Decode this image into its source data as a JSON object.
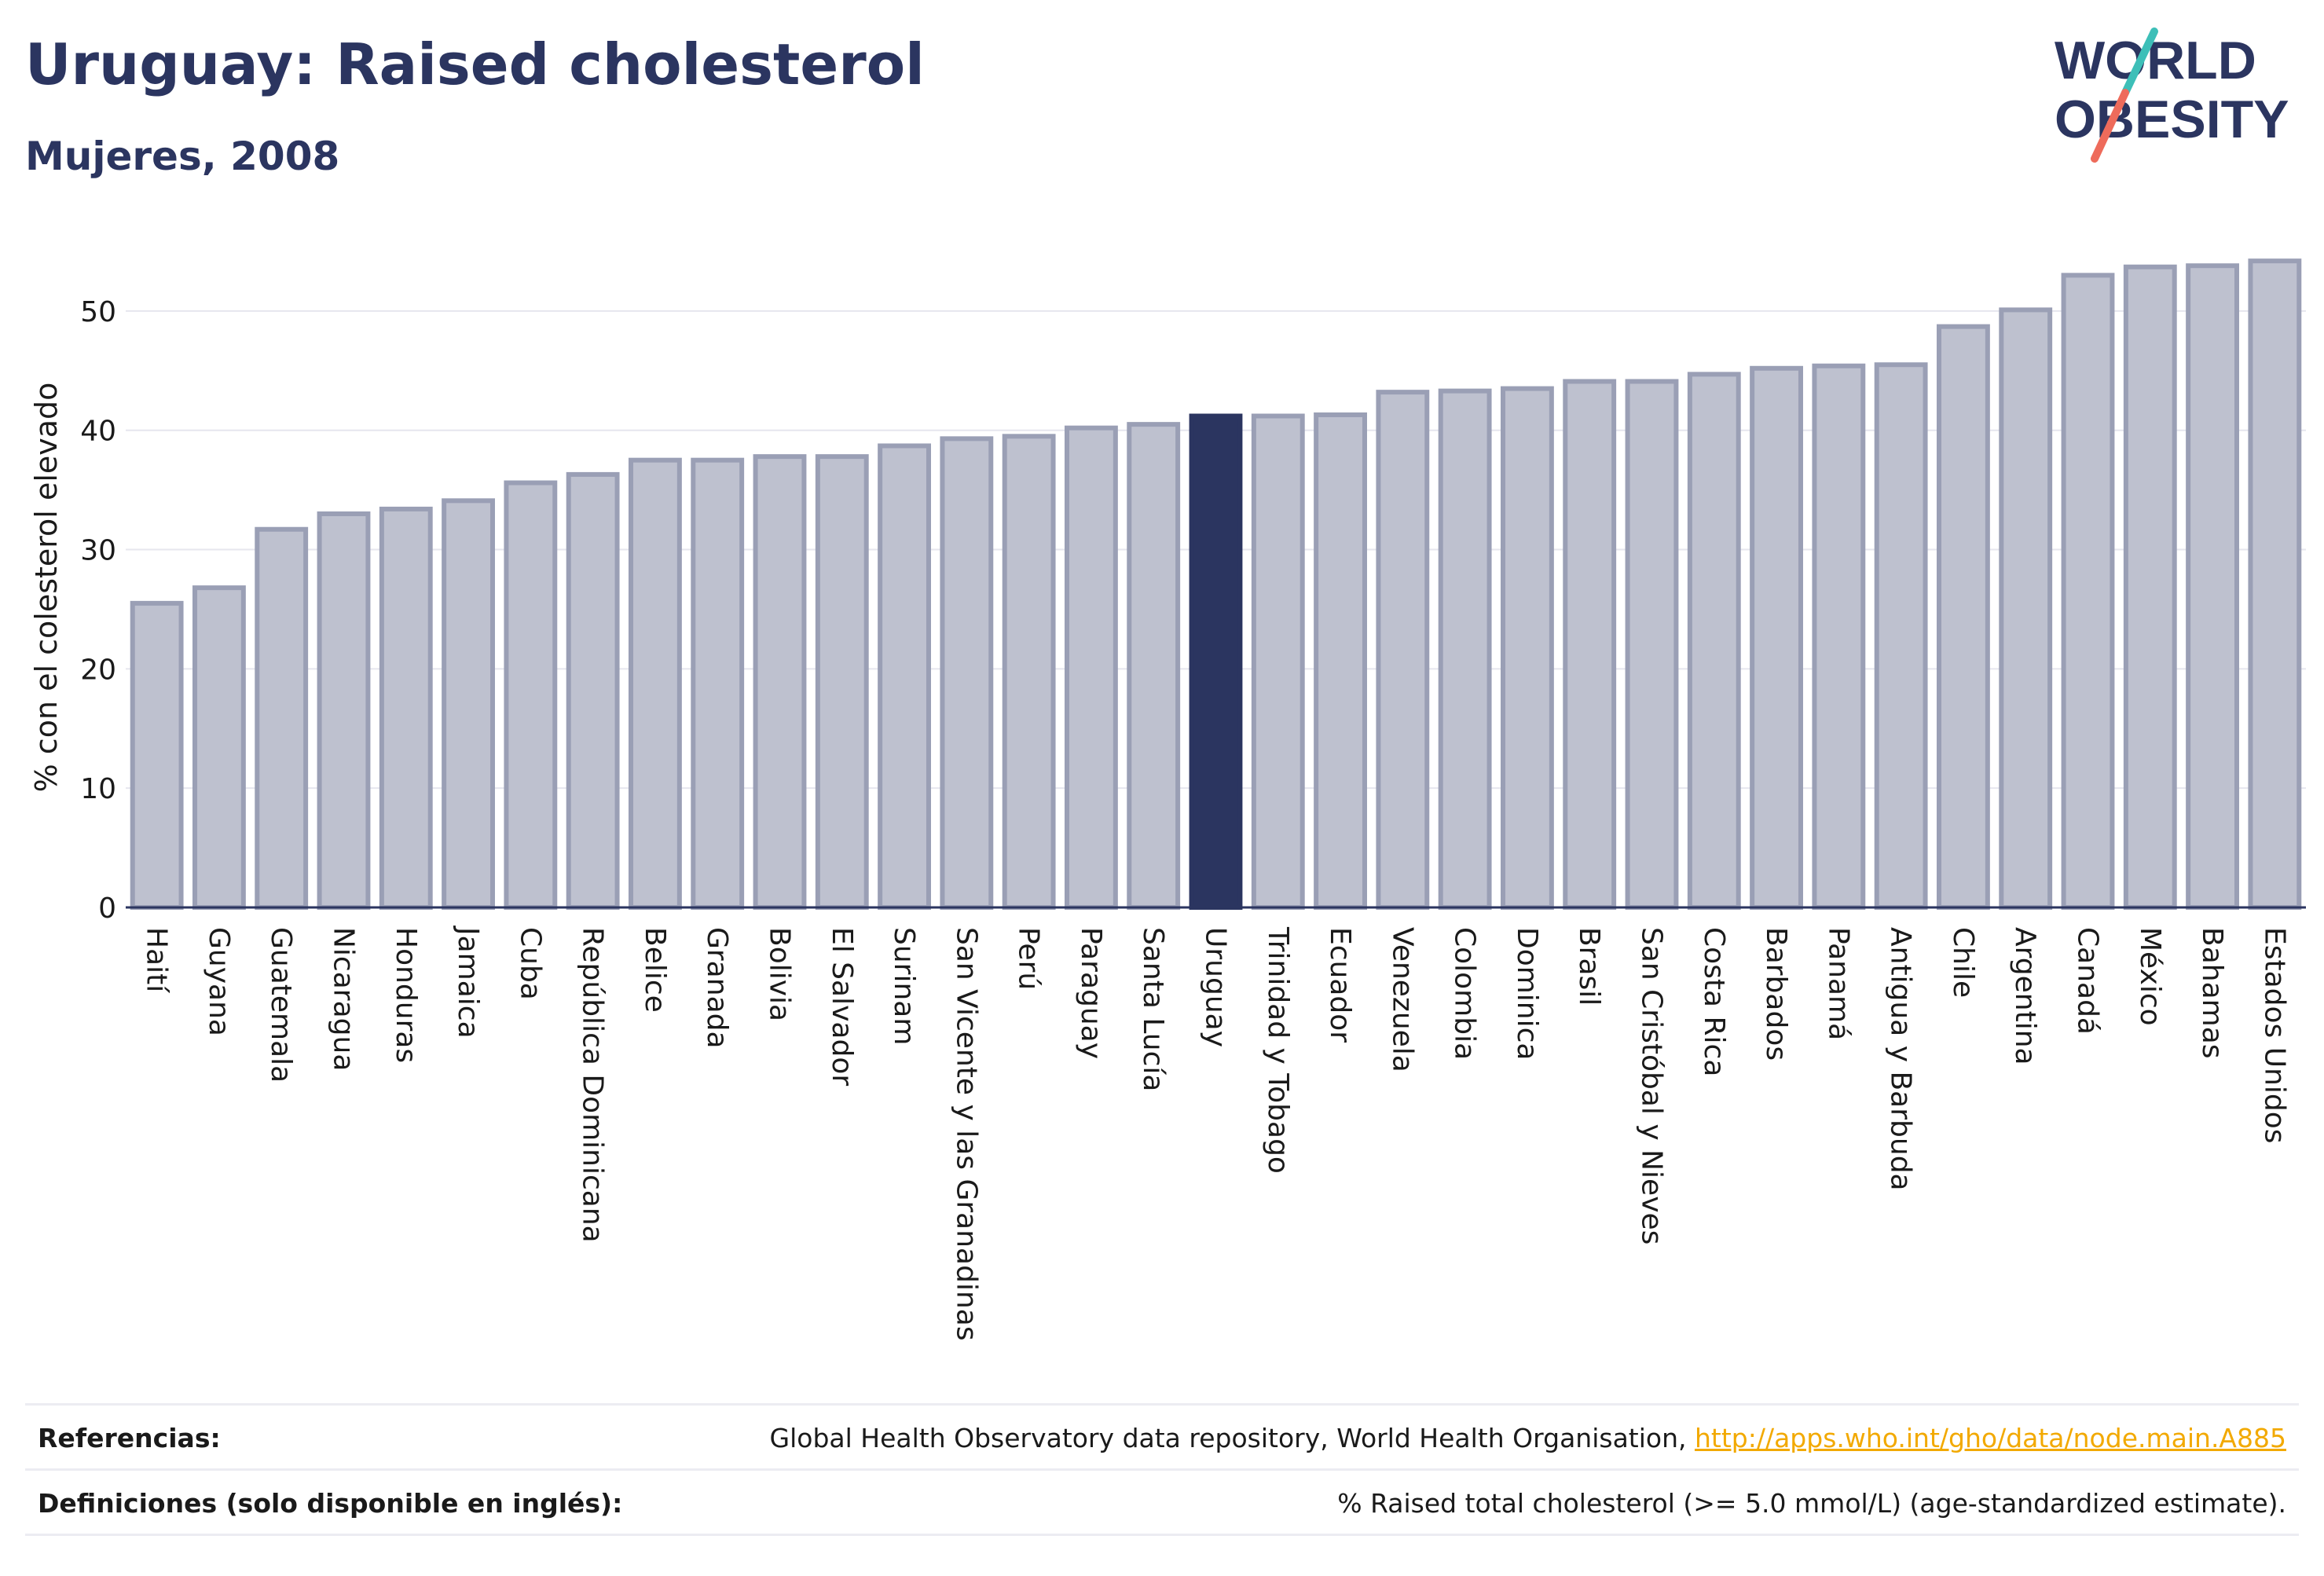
{
  "header": {
    "title": "Uruguay: Raised cholesterol",
    "subtitle": "Mujeres, 2008"
  },
  "logo": {
    "line1": "WORLD",
    "line2": "OBESITY"
  },
  "colors": {
    "title": "#2b3560",
    "bar_default": "#bec1cf",
    "bar_default_stroke": "#9a9fb5",
    "bar_highlight": "#2b3560",
    "link": "#f2a900",
    "logo_teal": "#3dbfb8",
    "logo_coral": "#ee6b5b"
  },
  "chart_data": {
    "type": "bar",
    "ylabel": "% con el colesterol elevado",
    "ylim": [
      0,
      55
    ],
    "yticks": [
      0,
      10,
      20,
      30,
      40,
      50
    ],
    "grid": true,
    "highlight": "Uruguay",
    "categories": [
      "Haití",
      "Guyana",
      "Guatemala",
      "Nicaragua",
      "Honduras",
      "Jamaica",
      "Cuba",
      "República Dominicana",
      "Belice",
      "Granada",
      "Bolivia",
      "El Salvador",
      "Surinam",
      "San Vicente y las Granadinas",
      "Perú",
      "Paraguay",
      "Santa Lucía",
      "Uruguay",
      "Trinidad y Tobago",
      "Ecuador",
      "Venezuela",
      "Colombia",
      "Dominica",
      "Brasil",
      "San Cristóbal y Nieves",
      "Costa Rica",
      "Barbados",
      "Panamá",
      "Antigua y Barbuda",
      "Chile",
      "Argentina",
      "Canadá",
      "México",
      "Bahamas",
      "Estados Unidos"
    ],
    "values": [
      25.5,
      26.8,
      31.7,
      33.0,
      33.4,
      34.1,
      35.6,
      36.3,
      37.5,
      37.5,
      37.8,
      37.8,
      38.7,
      39.3,
      39.5,
      40.2,
      40.5,
      41.2,
      41.2,
      41.3,
      43.2,
      43.3,
      43.5,
      44.1,
      44.1,
      44.7,
      45.2,
      45.4,
      45.5,
      48.7,
      50.1,
      53.0,
      53.7,
      53.8,
      54.2
    ]
  },
  "footer": {
    "references_label": "Referencias:",
    "references_text": "Global Health Observatory data repository, World Health Organisation, ",
    "references_link": "http://apps.who.int/gho/data/node.main.A885",
    "definitions_label": "Definiciones (solo disponible en inglés):",
    "definitions_text": "% Raised total cholesterol (>= 5.0 mmol/L) (age-standardized estimate)."
  }
}
